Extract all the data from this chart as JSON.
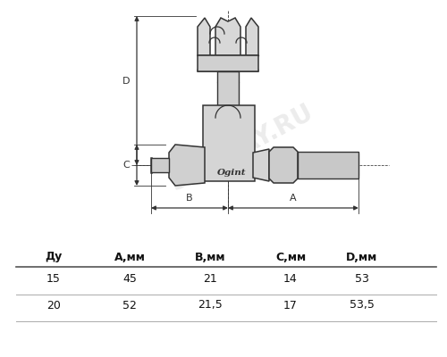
{
  "bg_color": "#ffffff",
  "watermark_text": "SANDAY.RU",
  "watermark_color": "#c0c0c0",
  "table_headers": [
    "Ду",
    "A,мм",
    "B,мм",
    "C,мм",
    "D,мм"
  ],
  "table_rows": [
    [
      "15",
      "45",
      "21",
      "14",
      "53"
    ],
    [
      "20",
      "52",
      "21,5",
      "17",
      "53,5"
    ]
  ],
  "dim_line_color": "#333333",
  "figure_width": 5.0,
  "figure_height": 4.0,
  "dpi": 100
}
